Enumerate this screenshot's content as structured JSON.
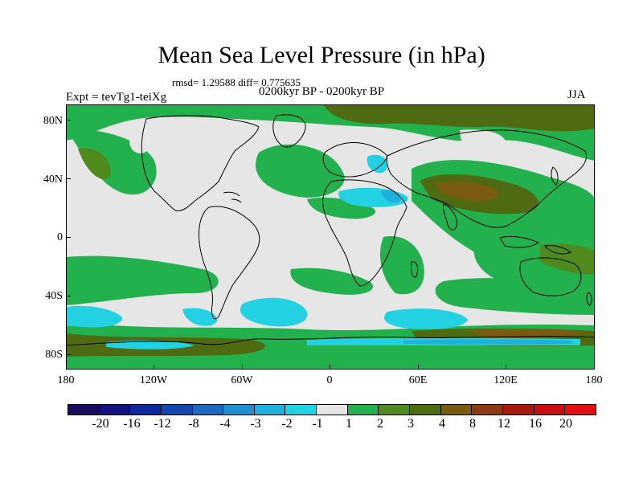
{
  "header": {
    "title": "Mean Sea Level Pressure (in hPa)",
    "stats": "rmsd= 1.29588 diff= 0.775635",
    "period": "0200kyr BP - 0200kyr BP",
    "experiment": "Expt = tevTg1-teiXg",
    "season": "JJA"
  },
  "axes": {
    "y_labels": [
      "80N",
      "40N",
      "0",
      "40S",
      "80S"
    ],
    "x_labels": [
      "180",
      "120W",
      "60W",
      "0",
      "60E",
      "120E",
      "180"
    ]
  },
  "colorbar": {
    "labels": [
      "-20",
      "-16",
      "-12",
      "-8",
      "-4",
      "-3",
      "-2",
      "-1",
      "1",
      "2",
      "3",
      "4",
      "8",
      "12",
      "16",
      "20"
    ],
    "colors": [
      "#1a0a5e",
      "#14107f",
      "#0e2a9a",
      "#1446b0",
      "#1b6ac0",
      "#1f8fd0",
      "#20b0de",
      "#22d2e2",
      "#e6e6e6",
      "#22b14c",
      "#4e8a1e",
      "#4f6b12",
      "#7a5b10",
      "#8c3a10",
      "#a81a10",
      "#c81010",
      "#e01010"
    ]
  },
  "map_colors": {
    "neutral": "#e6e6e6",
    "pos1": "#22b14c",
    "pos2": "#4e8a1e",
    "pos3": "#4f6b12",
    "pos4": "#7a5b10",
    "neg1": "#22d2e2",
    "neg2": "#20b0de",
    "coast": "#000000"
  }
}
